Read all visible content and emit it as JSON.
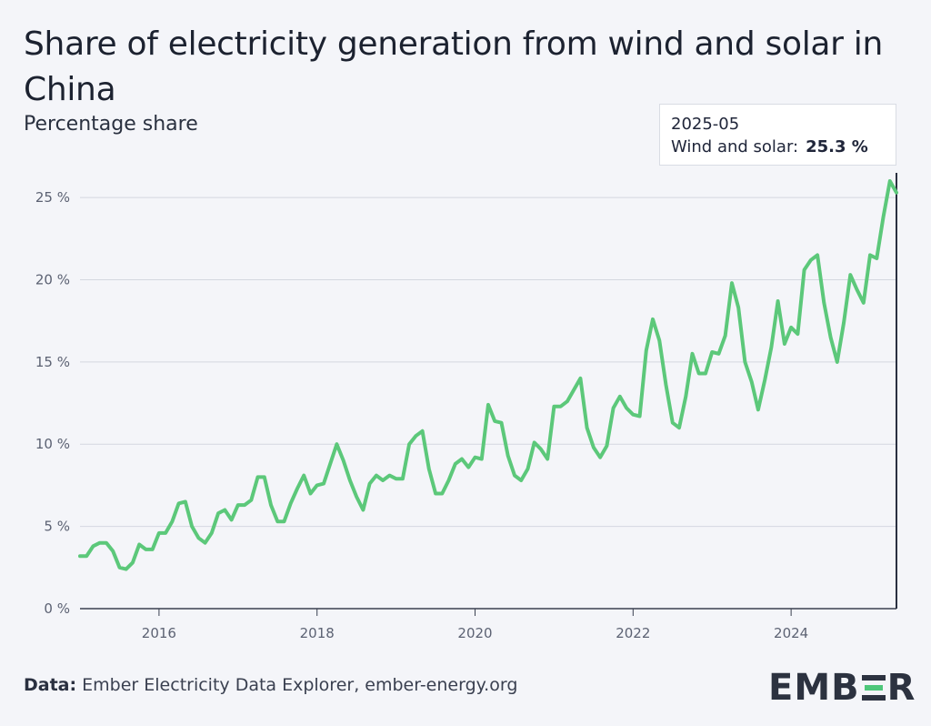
{
  "header": {
    "title": "Share of electricity generation from wind and solar in China",
    "subtitle": "Percentage share"
  },
  "tooltip": {
    "date": "2025-05",
    "label": "Wind and solar:",
    "value": "25.3 %"
  },
  "footer": {
    "source_label": "Data:",
    "source_text": "Ember Electricity Data Explorer, ember-energy.org",
    "logo_prefix": "EMB",
    "logo_suffix": "R"
  },
  "colors": {
    "line": "#5cc87a",
    "grid": "#d4d7e0",
    "cursor": "#2a3040"
  },
  "chart_data": {
    "type": "line",
    "x_ticks": [
      "2016",
      "2018",
      "2020",
      "2022",
      "2024"
    ],
    "y_ticks": [
      "0 %",
      "5 %",
      "10 %",
      "15 %",
      "20 %",
      "25 %"
    ],
    "ylim": [
      0,
      26.5
    ],
    "xlim": [
      "2015-01",
      "2025-05"
    ],
    "grid": true,
    "series": [
      {
        "name": "Wind and solar",
        "x": [
          "2015-01",
          "2015-02",
          "2015-03",
          "2015-04",
          "2015-05",
          "2015-06",
          "2015-07",
          "2015-08",
          "2015-09",
          "2015-10",
          "2015-11",
          "2015-12",
          "2016-01",
          "2016-02",
          "2016-03",
          "2016-04",
          "2016-05",
          "2016-06",
          "2016-07",
          "2016-08",
          "2016-09",
          "2016-10",
          "2016-11",
          "2016-12",
          "2017-01",
          "2017-02",
          "2017-03",
          "2017-04",
          "2017-05",
          "2017-06",
          "2017-07",
          "2017-08",
          "2017-09",
          "2017-10",
          "2017-11",
          "2017-12",
          "2018-01",
          "2018-02",
          "2018-03",
          "2018-04",
          "2018-05",
          "2018-06",
          "2018-07",
          "2018-08",
          "2018-09",
          "2018-10",
          "2018-11",
          "2018-12",
          "2019-01",
          "2019-02",
          "2019-03",
          "2019-04",
          "2019-05",
          "2019-06",
          "2019-07",
          "2019-08",
          "2019-09",
          "2019-10",
          "2019-11",
          "2019-12",
          "2020-01",
          "2020-02",
          "2020-03",
          "2020-04",
          "2020-05",
          "2020-06",
          "2020-07",
          "2020-08",
          "2020-09",
          "2020-10",
          "2020-11",
          "2020-12",
          "2021-01",
          "2021-02",
          "2021-03",
          "2021-04",
          "2021-05",
          "2021-06",
          "2021-07",
          "2021-08",
          "2021-09",
          "2021-10",
          "2021-11",
          "2021-12",
          "2022-01",
          "2022-02",
          "2022-03",
          "2022-04",
          "2022-05",
          "2022-06",
          "2022-07",
          "2022-08",
          "2022-09",
          "2022-10",
          "2022-11",
          "2022-12",
          "2023-01",
          "2023-02",
          "2023-03",
          "2023-04",
          "2023-05",
          "2023-06",
          "2023-07",
          "2023-08",
          "2023-09",
          "2023-10",
          "2023-11",
          "2023-12",
          "2024-01",
          "2024-02",
          "2024-03",
          "2024-04",
          "2024-05",
          "2024-06",
          "2024-07",
          "2024-08",
          "2024-09",
          "2024-10",
          "2024-11",
          "2024-12",
          "2025-01",
          "2025-02",
          "2025-03",
          "2025-04",
          "2025-05"
        ],
        "values": [
          3.2,
          3.2,
          3.8,
          4.0,
          4.0,
          3.5,
          2.5,
          2.4,
          2.8,
          3.9,
          3.6,
          3.6,
          4.6,
          4.6,
          5.3,
          6.4,
          6.5,
          5.0,
          4.3,
          4.0,
          4.6,
          5.8,
          6.0,
          5.4,
          6.3,
          6.3,
          6.6,
          8.0,
          8.0,
          6.3,
          5.3,
          5.3,
          6.4,
          7.3,
          8.1,
          7.0,
          7.5,
          7.6,
          8.8,
          10.0,
          9.0,
          7.8,
          6.8,
          6.0,
          7.6,
          8.1,
          7.8,
          8.1,
          7.9,
          7.9,
          10.0,
          10.5,
          10.8,
          8.5,
          7.0,
          7.0,
          7.8,
          8.8,
          9.1,
          8.6,
          9.2,
          9.1,
          12.4,
          11.4,
          11.3,
          9.3,
          8.1,
          7.8,
          8.5,
          10.1,
          9.7,
          9.1,
          12.3,
          12.3,
          12.6,
          13.3,
          14.0,
          11.0,
          9.8,
          9.2,
          9.9,
          12.2,
          12.9,
          12.2,
          11.8,
          11.7,
          15.7,
          17.6,
          16.3,
          13.6,
          11.3,
          11.0,
          12.9,
          15.5,
          14.3,
          14.3,
          15.6,
          15.5,
          16.6,
          19.8,
          18.3,
          15.0,
          13.8,
          12.1,
          13.9,
          15.9,
          18.7,
          16.1,
          17.1,
          16.7,
          20.6,
          21.2,
          21.5,
          18.6,
          16.5,
          15.0,
          17.4,
          20.3,
          19.4,
          18.6,
          21.5,
          21.3,
          23.8,
          26.0,
          25.3
        ]
      }
    ]
  }
}
